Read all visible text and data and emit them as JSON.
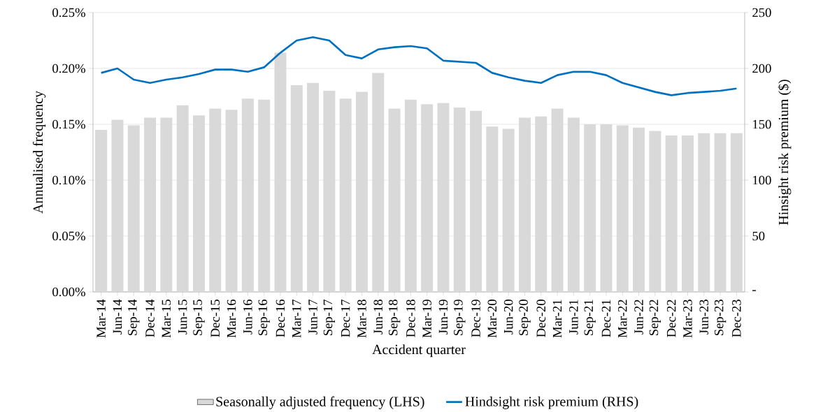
{
  "chart_data": {
    "type": "bar",
    "xlabel": "Accident quarter",
    "ylabel": "Annualised frequency",
    "y2label": "Hinsight risk premium ($)",
    "categories": [
      "Mar-14",
      "Jun-14",
      "Sep-14",
      "Dec-14",
      "Mar-15",
      "Jun-15",
      "Sep-15",
      "Dec-15",
      "Mar-16",
      "Jun-16",
      "Sep-16",
      "Dec-16",
      "Mar-17",
      "Jun-17",
      "Sep-17",
      "Dec-17",
      "Mar-18",
      "Jun-18",
      "Sep-18",
      "Dec-18",
      "Mar-19",
      "Jun-19",
      "Sep-19",
      "Dec-19",
      "Mar-20",
      "Jun-20",
      "Sep-20",
      "Dec-20",
      "Mar-21",
      "Jun-21",
      "Sep-21",
      "Dec-21",
      "Mar-22",
      "Jun-22",
      "Sep-22",
      "Dec-22",
      "Mar-23",
      "Jun-23",
      "Sep-23",
      "Dec-23"
    ],
    "series": [
      {
        "name": "Seasonally adjusted frequency (LHS)",
        "color": "#d9d9d9",
        "values": [
          0.145,
          0.154,
          0.149,
          0.156,
          0.156,
          0.167,
          0.158,
          0.164,
          0.163,
          0.173,
          0.172,
          0.214,
          0.185,
          0.187,
          0.18,
          0.173,
          0.179,
          0.196,
          0.164,
          0.172,
          0.168,
          0.169,
          0.165,
          0.162,
          0.148,
          0.146,
          0.156,
          0.157,
          0.164,
          0.156,
          0.15,
          0.15,
          0.149,
          0.147,
          0.144,
          0.14,
          0.14,
          0.142,
          0.142,
          0.142
        ]
      },
      {
        "name": "Hindsight risk premium (RHS)",
        "type": "line",
        "axis": "y2",
        "color": "#0070c0",
        "values": [
          196,
          200,
          190,
          187,
          190,
          192,
          195,
          199,
          199,
          197,
          201,
          214,
          225,
          228,
          225,
          212,
          209,
          217,
          219,
          220,
          218,
          207,
          206,
          205,
          196,
          192,
          189,
          187,
          194,
          197,
          197,
          194,
          187,
          183,
          179,
          176,
          178,
          179,
          180,
          182
        ]
      }
    ],
    "ylim": [
      0,
      0.25
    ],
    "yticks": [
      {
        "value": 0,
        "label": "0.00%"
      },
      {
        "value": 0.05,
        "label": "0.05%"
      },
      {
        "value": 0.1,
        "label": "0.10%"
      },
      {
        "value": 0.15,
        "label": "0.15%"
      },
      {
        "value": 0.2,
        "label": "0.20%"
      },
      {
        "value": 0.25,
        "label": "0.25%"
      }
    ],
    "y2lim": [
      0,
      250
    ],
    "y2ticks": [
      {
        "value": 0,
        "label": "-"
      },
      50,
      100,
      150,
      200,
      250
    ],
    "grid": "y",
    "legend": "bottom"
  }
}
